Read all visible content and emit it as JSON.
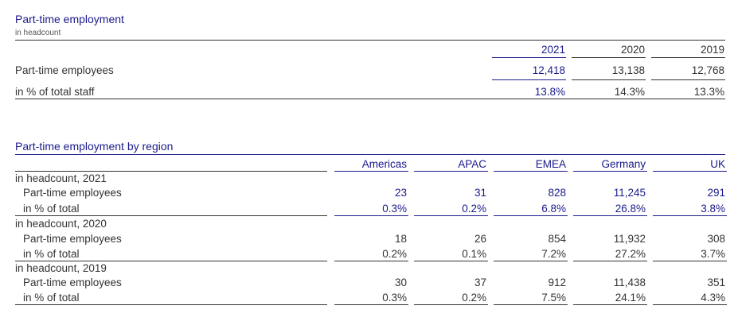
{
  "table1": {
    "title": "Part-time employment",
    "subtitle": "in headcount",
    "years": [
      "2021",
      "2020",
      "2019"
    ],
    "rows": [
      {
        "label": "Part-time employees",
        "values": [
          "12,418",
          "13,138",
          "12,768"
        ]
      },
      {
        "label": "in % of total staff",
        "values": [
          "13.8%",
          "14.3%",
          "13.3%"
        ]
      }
    ]
  },
  "table2": {
    "title": "Part-time employment by region",
    "regions": [
      "Americas",
      "APAC",
      "EMEA",
      "Germany",
      "UK"
    ],
    "groups": [
      {
        "header": "in headcount, 2021",
        "rows": [
          {
            "label": "Part-time employees",
            "values": [
              "23",
              "31",
              "828",
              "11,245",
              "291"
            ]
          },
          {
            "label": "in % of total",
            "values": [
              "0.3%",
              "0.2%",
              "6.8%",
              "26.8%",
              "3.8%"
            ]
          }
        ]
      },
      {
        "header": "in headcount, 2020",
        "rows": [
          {
            "label": "Part-time employees",
            "values": [
              "18",
              "26",
              "854",
              "11,932",
              "308"
            ]
          },
          {
            "label": "in % of total",
            "values": [
              "0.2%",
              "0.1%",
              "7.2%",
              "27.2%",
              "3.7%"
            ]
          }
        ]
      },
      {
        "header": "in headcount, 2019",
        "rows": [
          {
            "label": "Part-time employees",
            "values": [
              "30",
              "37",
              "912",
              "11,438",
              "351"
            ]
          },
          {
            "label": "in % of total",
            "values": [
              "0.3%",
              "0.2%",
              "7.5%",
              "24.1%",
              "4.3%"
            ]
          }
        ]
      }
    ]
  }
}
